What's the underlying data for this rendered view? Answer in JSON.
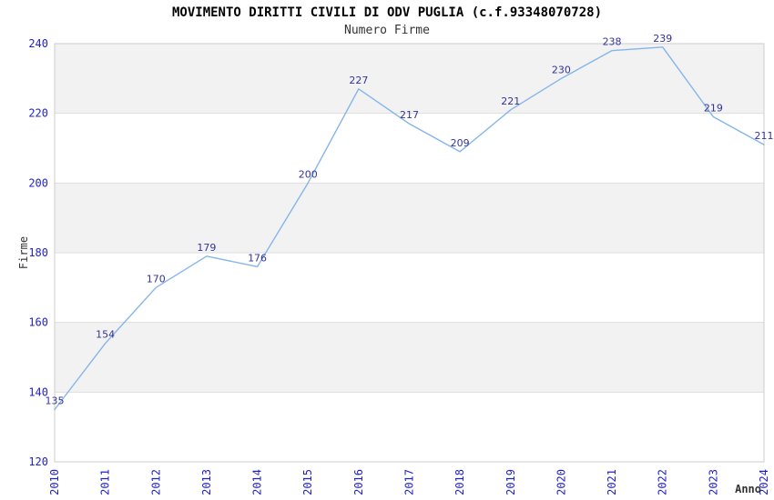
{
  "chart_data": {
    "type": "line",
    "title": "MOVIMENTO DIRITTI CIVILI DI ODV PUGLIA (c.f.93348070728)",
    "subtitle": "Numero Firme",
    "xlabel": "Anno",
    "ylabel": "Firme",
    "categories": [
      "2010",
      "2011",
      "2012",
      "2013",
      "2014",
      "2015",
      "2016",
      "2017",
      "2018",
      "2019",
      "2020",
      "2021",
      "2022",
      "2023",
      "2024"
    ],
    "series": [
      {
        "name": "Numero Firme",
        "values": [
          135,
          154,
          170,
          179,
          176,
          200,
          227,
          217,
          209,
          221,
          230,
          238,
          239,
          219,
          211
        ]
      }
    ],
    "ylim": [
      120,
      240
    ],
    "yticks": [
      120,
      140,
      160,
      180,
      200,
      220,
      240
    ],
    "grid": "alternating-horizontal-bands",
    "legend_position": "none",
    "colors": {
      "line": "#85B5EA",
      "axis_tick_label": "#2222CC",
      "point_label": "#333399",
      "band_fill": "#F2F2F2",
      "plot_border": "#CCCCCC",
      "gridline": "#DDDDDD",
      "title": "#000000",
      "subtitle": "#333333",
      "axis_title": "#333333"
    }
  }
}
